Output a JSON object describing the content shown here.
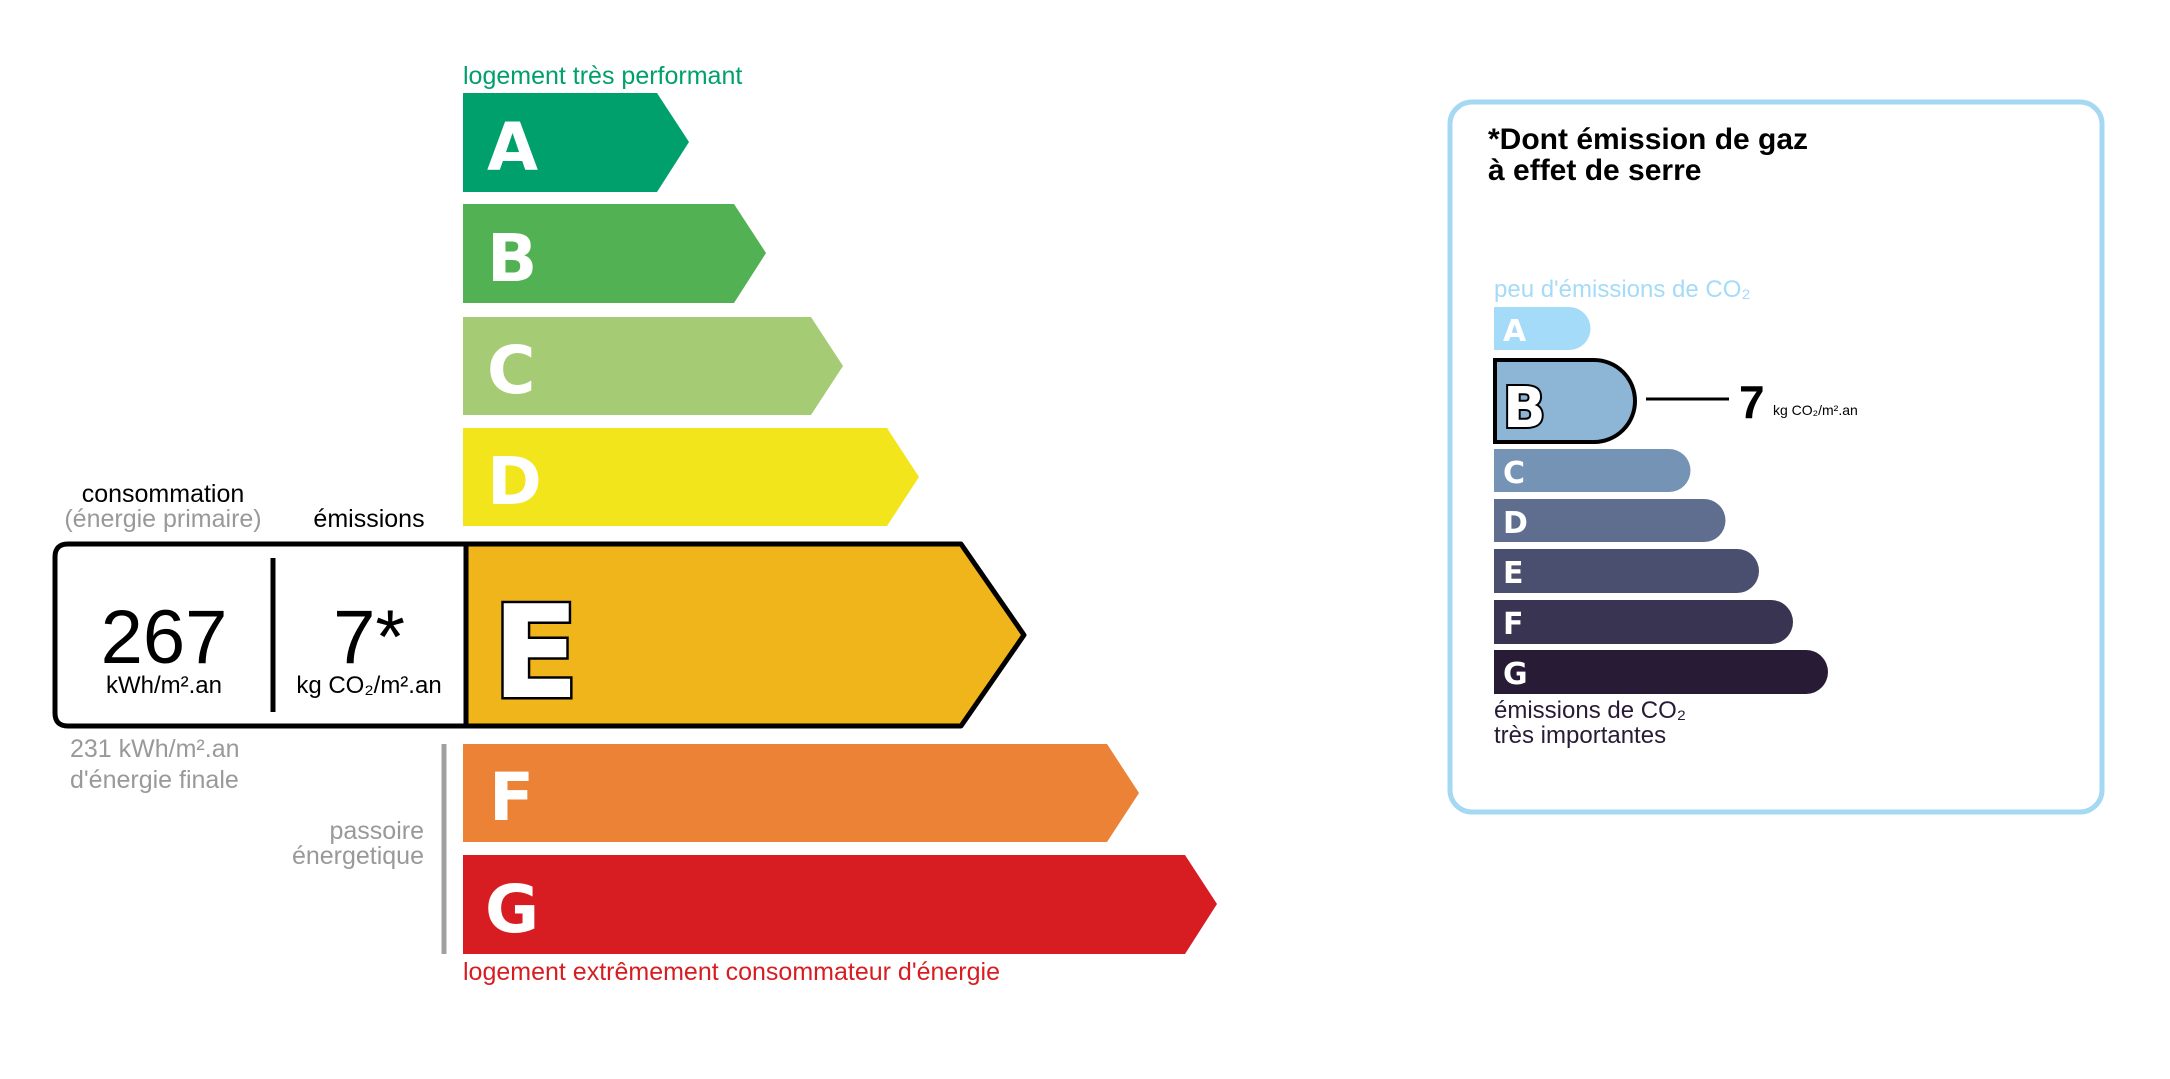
{
  "energy": {
    "top_label": "logement très performant",
    "bottom_label": "logement extrêmement consommateur d'énergie",
    "classes": [
      {
        "letter": "A",
        "color": "#00a06d"
      },
      {
        "letter": "B",
        "color": "#52b153"
      },
      {
        "letter": "C",
        "color": "#a5cc74"
      },
      {
        "letter": "D",
        "color": "#f2e51c"
      },
      {
        "letter": "E",
        "color": "#efb51a"
      },
      {
        "letter": "F",
        "color": "#eb8235"
      },
      {
        "letter": "G",
        "color": "#d71d21"
      }
    ],
    "current_class": "E",
    "consumption_label": "consommation",
    "consumption_sublabel": "(énergie primaire)",
    "emissions_label": "émissions",
    "consumption_value": "267",
    "consumption_unit": "kWh/m².an",
    "emissions_value": "7*",
    "emissions_unit": "kg CO₂/m².an",
    "final_energy_value": "231 kWh/m².an",
    "final_energy_label": "d'énergie finale",
    "passoire_line1": "passoire",
    "passoire_line2": "énergetique"
  },
  "ghg": {
    "title_line1": "*Dont émission de gaz",
    "title_line2": "à effet de serre",
    "top_label": "peu d'émissions de CO₂",
    "bottom_label_line1": "émissions de CO₂",
    "bottom_label_line2": "très importantes",
    "classes": [
      {
        "letter": "A",
        "color": "#a4dbf8"
      },
      {
        "letter": "B",
        "color": "#8db5d5"
      },
      {
        "letter": "C",
        "color": "#7593b4"
      },
      {
        "letter": "D",
        "color": "#5f6e8f"
      },
      {
        "letter": "E",
        "color": "#4b4f6f"
      },
      {
        "letter": "F",
        "color": "#383451"
      },
      {
        "letter": "G",
        "color": "#281b35"
      }
    ],
    "current_class": "B",
    "value": "7",
    "unit": "kg CO₂/m².an",
    "border_color": "#a4d8f3"
  }
}
